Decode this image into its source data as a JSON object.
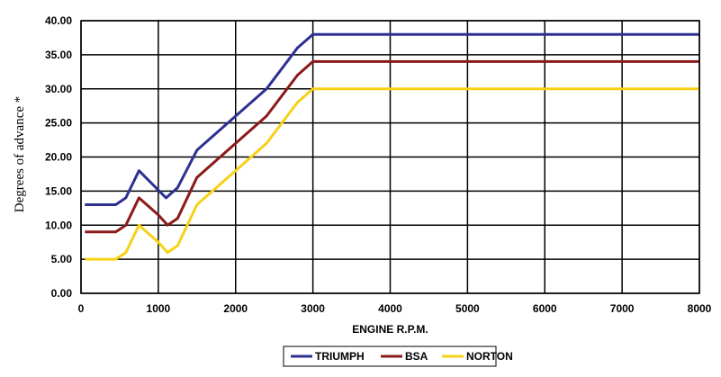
{
  "chart_data": {
    "type": "line",
    "xlabel": "ENGINE R.P.M.",
    "ylabel": "Degrees of advance *",
    "xlim": [
      0,
      8000
    ],
    "ylim": [
      0,
      40
    ],
    "x_ticks": [
      "0",
      "1000",
      "2000",
      "3000",
      "4000",
      "5000",
      "6000",
      "7000",
      "8000"
    ],
    "y_ticks": [
      "0.00",
      "5.00",
      "10.00",
      "15.00",
      "20.00",
      "25.00",
      "30.00",
      "35.00",
      "40.00"
    ],
    "grid": true,
    "legend_position": "bottom",
    "series": [
      {
        "name": "TRIUMPH",
        "color": "#2e3192",
        "points": [
          [
            50,
            13
          ],
          [
            450,
            13
          ],
          [
            580,
            14
          ],
          [
            750,
            18
          ],
          [
            1100,
            14
          ],
          [
            1250,
            15.5
          ],
          [
            1500,
            21
          ],
          [
            2000,
            26
          ],
          [
            2400,
            30
          ],
          [
            2800,
            36
          ],
          [
            3000,
            38
          ],
          [
            8000,
            38
          ]
        ]
      },
      {
        "name": "BSA",
        "color": "#8b1a1a",
        "points": [
          [
            50,
            9
          ],
          [
            450,
            9
          ],
          [
            580,
            10
          ],
          [
            750,
            14
          ],
          [
            1000,
            11.5
          ],
          [
            1120,
            10
          ],
          [
            1250,
            11
          ],
          [
            1500,
            17
          ],
          [
            2000,
            22
          ],
          [
            2400,
            26
          ],
          [
            2800,
            32
          ],
          [
            3000,
            34
          ],
          [
            8000,
            34
          ]
        ]
      },
      {
        "name": "NORTON",
        "color": "#f7d117",
        "points": [
          [
            50,
            5
          ],
          [
            450,
            5
          ],
          [
            580,
            6
          ],
          [
            750,
            10
          ],
          [
            1000,
            7.5
          ],
          [
            1120,
            6
          ],
          [
            1250,
            7
          ],
          [
            1500,
            13
          ],
          [
            2000,
            18
          ],
          [
            2400,
            22
          ],
          [
            2800,
            28
          ],
          [
            3000,
            30
          ],
          [
            8000,
            30
          ]
        ]
      }
    ]
  }
}
